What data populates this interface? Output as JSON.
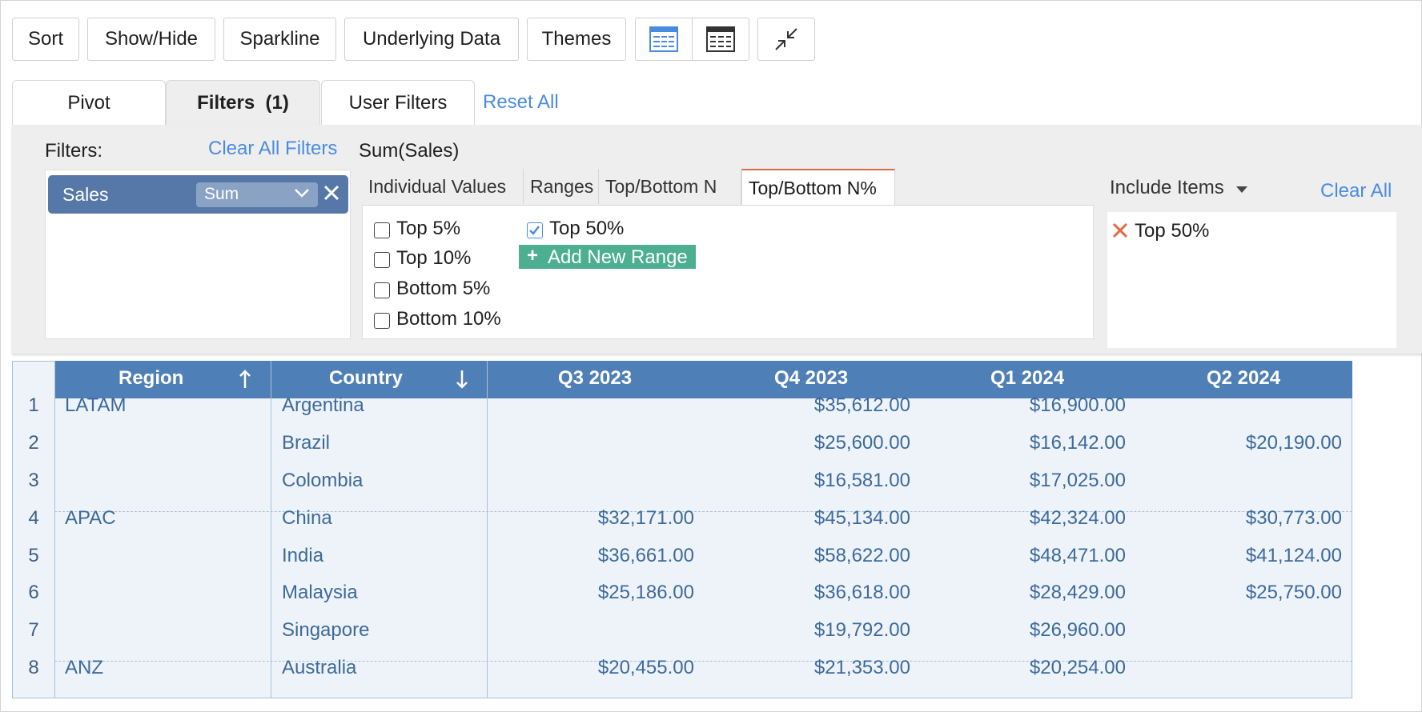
{
  "toolbar": {
    "sort": "Sort",
    "show_hide": "Show/Hide",
    "sparkline": "Sparkline",
    "underlying_data": "Underlying Data",
    "themes": "Themes",
    "icons": [
      "table-view-icon",
      "tabular-layout-icon",
      "collapse-icon"
    ]
  },
  "tabs": {
    "pivot": "Pivot",
    "filters": "Filters",
    "filters_count": "(1)",
    "user_filters": "User Filters",
    "reset_all": "Reset All"
  },
  "filters_panel": {
    "label": "Filters:",
    "clear_all_filters": "Clear All Filters",
    "measure_title": "Sum(Sales)",
    "chip": {
      "field": "Sales",
      "aggregate": "Sum"
    },
    "subtabs": [
      "Individual Values",
      "Ranges",
      "Top/Bottom N",
      "Top/Bottom N%"
    ],
    "active_subtab": "Top/Bottom N%",
    "options": [
      {
        "label": "Top 5%",
        "checked": false
      },
      {
        "label": "Top 10%",
        "checked": false
      },
      {
        "label": "Bottom 5%",
        "checked": false
      },
      {
        "label": "Bottom 10%",
        "checked": false
      },
      {
        "label": "Top 50%",
        "checked": true
      }
    ],
    "add_new_range": "Add New Range",
    "include_items": "Include Items",
    "clear_all": "Clear All",
    "included": [
      "Top 50%"
    ]
  },
  "table": {
    "headers": {
      "region": "Region",
      "country": "Country",
      "q3_2023": "Q3 2023",
      "q4_2023": "Q4 2023",
      "q1_2024": "Q1 2024",
      "q2_2024": "Q2 2024"
    },
    "rows": [
      {
        "n": "1",
        "region": "LATAM",
        "country": "Argentina",
        "q3": "",
        "q4": "$35,612.00",
        "q1": "$16,900.00",
        "q2": ""
      },
      {
        "n": "2",
        "region": "",
        "country": "Brazil",
        "q3": "",
        "q4": "$25,600.00",
        "q1": "$16,142.00",
        "q2": "$20,190.00"
      },
      {
        "n": "3",
        "region": "",
        "country": "Colombia",
        "q3": "",
        "q4": "$16,581.00",
        "q1": "$17,025.00",
        "q2": ""
      },
      {
        "n": "4",
        "region": "APAC",
        "country": "China",
        "q3": "$32,171.00",
        "q4": "$45,134.00",
        "q1": "$42,324.00",
        "q2": "$30,773.00"
      },
      {
        "n": "5",
        "region": "",
        "country": "India",
        "q3": "$36,661.00",
        "q4": "$58,622.00",
        "q1": "$48,471.00",
        "q2": "$41,124.00"
      },
      {
        "n": "6",
        "region": "",
        "country": "Malaysia",
        "q3": "$25,186.00",
        "q4": "$36,618.00",
        "q1": "$28,429.00",
        "q2": "$25,750.00"
      },
      {
        "n": "7",
        "region": "",
        "country": "Singapore",
        "q3": "",
        "q4": "$19,792.00",
        "q1": "$26,960.00",
        "q2": ""
      },
      {
        "n": "8",
        "region": "ANZ",
        "country": "Australia",
        "q3": "$20,455.00",
        "q4": "$21,353.00",
        "q1": "$20,254.00",
        "q2": ""
      }
    ]
  },
  "colors": {
    "accent": "#4a8be0",
    "header_bg": "#4f7fb7",
    "chip_bg": "#5678a8",
    "add_range_bg": "#4caf8f",
    "active_tab_border": "#e06a45"
  }
}
